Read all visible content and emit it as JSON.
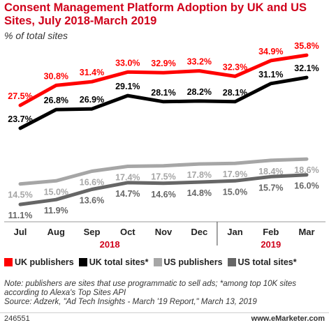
{
  "title": "Consent Management Platform Adoption by UK and US Sites, July 2018-March 2019",
  "subtitle": "% of total sites",
  "chart_data": {
    "type": "line",
    "categories": [
      "Jul",
      "Aug",
      "Sep",
      "Oct",
      "Nov",
      "Dec",
      "Jan",
      "Feb",
      "Mar"
    ],
    "year_labels": [
      {
        "label": "2018",
        "from": 0,
        "to": 5
      },
      {
        "label": "2019",
        "from": 6,
        "to": 8
      }
    ],
    "ylim": [
      8,
      38
    ],
    "grid": false,
    "legend_position": "bottom",
    "series": [
      {
        "name": "UK publishers",
        "color": "#ff0000",
        "label_color": "#ff0000",
        "label_position": "above",
        "values": [
          27.5,
          30.8,
          31.4,
          33.0,
          32.9,
          33.2,
          32.3,
          34.9,
          35.8
        ],
        "labels": [
          "27.5%",
          "30.8%",
          "31.4%",
          "33.0%",
          "32.9%",
          "33.2%",
          "32.3%",
          "34.9%",
          "35.8%"
        ]
      },
      {
        "name": "UK total sites*",
        "color": "#000000",
        "label_color": "#000000",
        "label_position": "above",
        "values": [
          23.7,
          26.8,
          26.9,
          29.1,
          28.1,
          28.2,
          28.1,
          31.1,
          32.1
        ],
        "labels": [
          "23.7%",
          "26.8%",
          "26.9%",
          "29.1%",
          "28.1%",
          "28.2%",
          "28.1%",
          "31.1%",
          "32.1%"
        ]
      },
      {
        "name": "US publishers",
        "color": "#a6a6a6",
        "label_color": "#a6a6a6",
        "label_position": "below",
        "values": [
          14.5,
          15.0,
          16.6,
          17.4,
          17.5,
          17.8,
          17.9,
          18.4,
          18.6
        ],
        "labels": [
          "14.5%",
          "15.0%",
          "16.6%",
          "17.4%",
          "17.5%",
          "17.8%",
          "17.9%",
          "18.4%",
          "18.6%"
        ]
      },
      {
        "name": "US total sites*",
        "color": "#666666",
        "label_color": "#666666",
        "label_position": "below",
        "values": [
          11.1,
          11.9,
          13.6,
          14.7,
          14.6,
          14.8,
          15.0,
          15.7,
          16.0
        ],
        "labels": [
          "11.1%",
          "11.9%",
          "13.6%",
          "14.7%",
          "14.6%",
          "14.8%",
          "15.0%",
          "15.7%",
          "16.0%"
        ]
      }
    ]
  },
  "note": "Note: publishers are sites that use programmatic to sell ads; *among top 10K sites according to Alexa's Top Sites API",
  "source": "Source: Adzerk, \"Ad Tech Insights - March '19 Report,\" March 13, 2019",
  "footer": {
    "id": "246551",
    "brand": "www.eMarketer.com"
  }
}
